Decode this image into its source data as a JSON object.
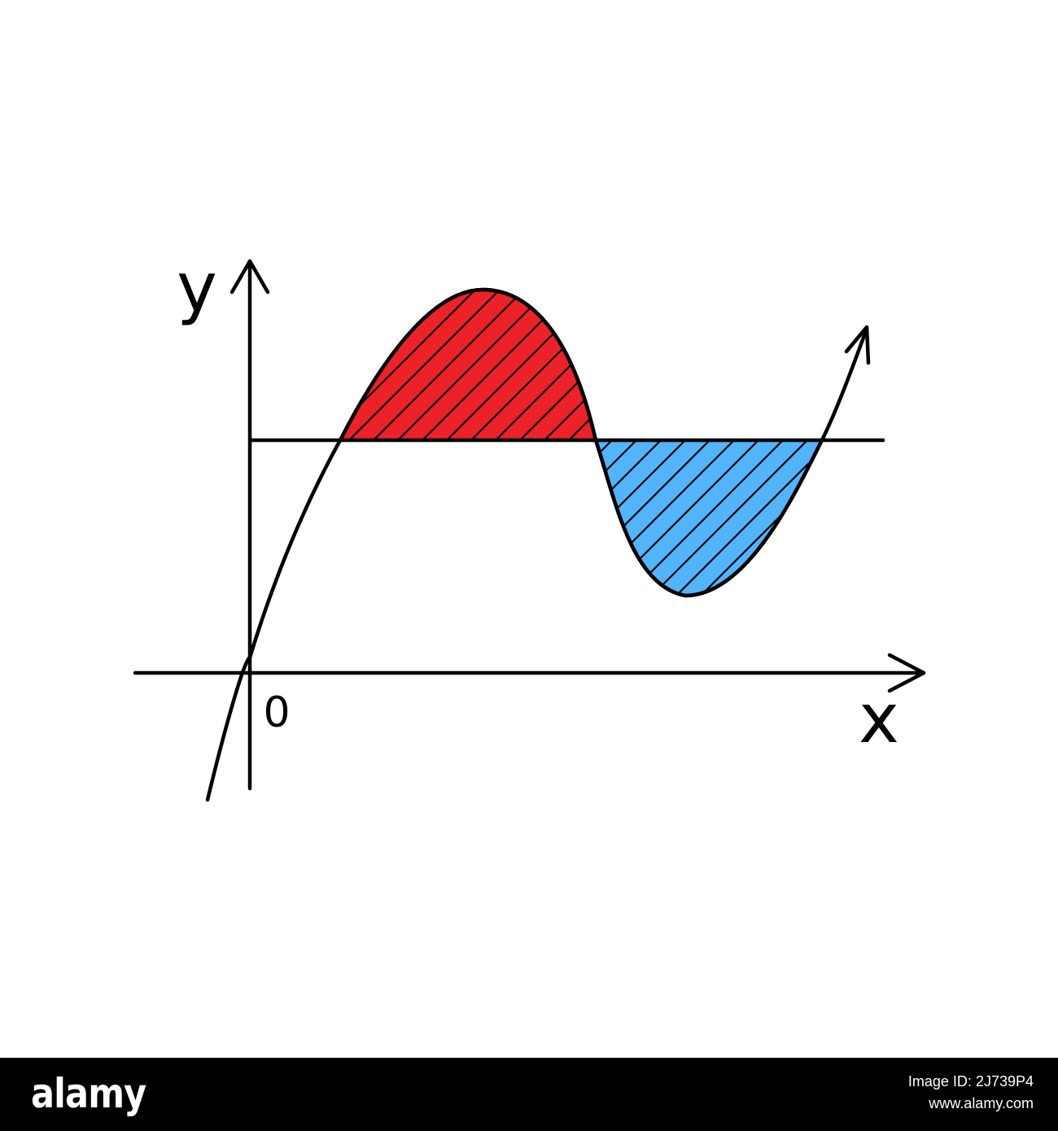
{
  "diagram": {
    "labels": {
      "y_axis": "y",
      "x_axis": "x",
      "origin": "0"
    },
    "colors": {
      "stroke": "#000000",
      "area_above": "#ed2229",
      "area_below": "#52b4fb",
      "background": "#ffffff"
    }
  },
  "footer": {
    "logo": "alamy",
    "image_id_line": "Image ID: 2J739P4",
    "site": "www.alamy.com",
    "colors": {
      "bar": "#000000",
      "text": "#ffffff"
    }
  }
}
